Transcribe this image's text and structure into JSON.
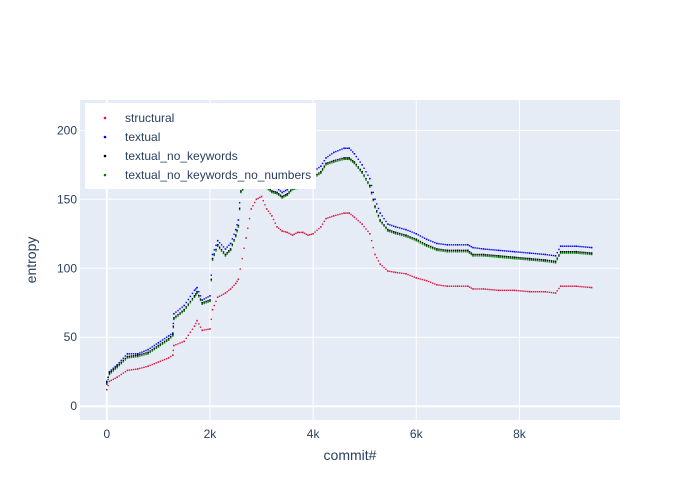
{
  "chart_data": {
    "type": "scatter",
    "title": "",
    "xlabel": "commit#",
    "ylabel": "entropy",
    "xlim": [
      -520,
      9950
    ],
    "ylim": [
      -10,
      222
    ],
    "x_ticks": [
      0,
      2000,
      4000,
      6000,
      8000
    ],
    "x_tick_labels": [
      "0",
      "2k",
      "4k",
      "6k",
      "8k"
    ],
    "y_ticks": [
      0,
      50,
      100,
      150,
      200
    ],
    "y_tick_labels": [
      "0",
      "50",
      "100",
      "150",
      "200"
    ],
    "grid": true,
    "legend_position": "top-left",
    "series": [
      {
        "name": "structural",
        "color": "#dc143c",
        "points": [
          [
            0,
            12
          ],
          [
            50,
            18
          ],
          [
            200,
            21
          ],
          [
            400,
            26
          ],
          [
            600,
            27
          ],
          [
            800,
            29
          ],
          [
            1000,
            32
          ],
          [
            1200,
            35
          ],
          [
            1280,
            37
          ],
          [
            1300,
            44
          ],
          [
            1500,
            47
          ],
          [
            1700,
            58
          ],
          [
            1750,
            62
          ],
          [
            1850,
            55
          ],
          [
            2000,
            56
          ],
          [
            2050,
            70
          ],
          [
            2150,
            79
          ],
          [
            2300,
            82
          ],
          [
            2400,
            85
          ],
          [
            2500,
            89
          ],
          [
            2550,
            92
          ],
          [
            2700,
            122
          ],
          [
            2800,
            143
          ],
          [
            2900,
            150
          ],
          [
            3000,
            152
          ],
          [
            3100,
            143
          ],
          [
            3200,
            138
          ],
          [
            3300,
            130
          ],
          [
            3400,
            127
          ],
          [
            3500,
            126
          ],
          [
            3600,
            124
          ],
          [
            3700,
            126
          ],
          [
            3800,
            126
          ],
          [
            3900,
            124
          ],
          [
            4000,
            125
          ],
          [
            4150,
            130
          ],
          [
            4250,
            136
          ],
          [
            4400,
            138
          ],
          [
            4600,
            140
          ],
          [
            4700,
            140
          ],
          [
            4800,
            137
          ],
          [
            4950,
            132
          ],
          [
            5100,
            125
          ],
          [
            5200,
            110
          ],
          [
            5300,
            103
          ],
          [
            5450,
            98
          ],
          [
            5600,
            97
          ],
          [
            5800,
            96
          ],
          [
            6000,
            93
          ],
          [
            6200,
            91
          ],
          [
            6400,
            88
          ],
          [
            6600,
            87
          ],
          [
            6800,
            87
          ],
          [
            7000,
            87
          ],
          [
            7100,
            85
          ],
          [
            7300,
            85
          ],
          [
            7600,
            84
          ],
          [
            7900,
            84
          ],
          [
            8200,
            83
          ],
          [
            8500,
            83
          ],
          [
            8700,
            82
          ],
          [
            8800,
            87
          ],
          [
            9100,
            87
          ],
          [
            9400,
            86
          ]
        ]
      },
      {
        "name": "textual",
        "color": "#0000ff",
        "points": [
          [
            0,
            17
          ],
          [
            50,
            25
          ],
          [
            200,
            30
          ],
          [
            400,
            38
          ],
          [
            600,
            38
          ],
          [
            800,
            41
          ],
          [
            1000,
            46
          ],
          [
            1200,
            51
          ],
          [
            1280,
            53
          ],
          [
            1300,
            67
          ],
          [
            1500,
            73
          ],
          [
            1700,
            84
          ],
          [
            1750,
            86
          ],
          [
            1850,
            77
          ],
          [
            2000,
            80
          ],
          [
            2050,
            110
          ],
          [
            2150,
            120
          ],
          [
            2300,
            114
          ],
          [
            2400,
            118
          ],
          [
            2500,
            128
          ],
          [
            2550,
            135
          ],
          [
            2600,
            160
          ],
          [
            2700,
            165
          ],
          [
            2800,
            172
          ],
          [
            2900,
            172
          ],
          [
            3000,
            167
          ],
          [
            3100,
            162
          ],
          [
            3200,
            159
          ],
          [
            3300,
            158
          ],
          [
            3400,
            155
          ],
          [
            3500,
            157
          ],
          [
            3600,
            162
          ],
          [
            3700,
            163
          ],
          [
            3800,
            163
          ],
          [
            3900,
            165
          ],
          [
            4000,
            170
          ],
          [
            4150,
            174
          ],
          [
            4250,
            180
          ],
          [
            4400,
            184
          ],
          [
            4600,
            187
          ],
          [
            4700,
            187
          ],
          [
            4800,
            183
          ],
          [
            4950,
            175
          ],
          [
            5100,
            165
          ],
          [
            5200,
            150
          ],
          [
            5300,
            140
          ],
          [
            5450,
            132
          ],
          [
            5600,
            130
          ],
          [
            5800,
            128
          ],
          [
            6000,
            125
          ],
          [
            6200,
            121
          ],
          [
            6400,
            118
          ],
          [
            6600,
            117
          ],
          [
            6800,
            117
          ],
          [
            7000,
            117
          ],
          [
            7100,
            115
          ],
          [
            7300,
            114
          ],
          [
            7600,
            113
          ],
          [
            7900,
            112
          ],
          [
            8200,
            111
          ],
          [
            8500,
            110
          ],
          [
            8700,
            109
          ],
          [
            8800,
            116
          ],
          [
            9100,
            116
          ],
          [
            9400,
            115
          ]
        ]
      },
      {
        "name": "textual_no_keywords",
        "color": "#000000",
        "points": [
          [
            0,
            18
          ],
          [
            50,
            24
          ],
          [
            200,
            29
          ],
          [
            400,
            36
          ],
          [
            600,
            37
          ],
          [
            800,
            39
          ],
          [
            1000,
            44
          ],
          [
            1200,
            49
          ],
          [
            1280,
            52
          ],
          [
            1300,
            64
          ],
          [
            1500,
            70
          ],
          [
            1700,
            80
          ],
          [
            1750,
            83
          ],
          [
            1850,
            75
          ],
          [
            2000,
            77
          ],
          [
            2050,
            107
          ],
          [
            2150,
            117
          ],
          [
            2300,
            110
          ],
          [
            2400,
            114
          ],
          [
            2500,
            124
          ],
          [
            2550,
            131
          ],
          [
            2600,
            156
          ],
          [
            2700,
            161
          ],
          [
            2800,
            168
          ],
          [
            2900,
            168
          ],
          [
            3000,
            163
          ],
          [
            3100,
            159
          ],
          [
            3200,
            156
          ],
          [
            3300,
            155
          ],
          [
            3400,
            152
          ],
          [
            3500,
            154
          ],
          [
            3600,
            158
          ],
          [
            3700,
            159
          ],
          [
            3800,
            159
          ],
          [
            3900,
            161
          ],
          [
            4000,
            166
          ],
          [
            4150,
            170
          ],
          [
            4250,
            176
          ],
          [
            4400,
            178
          ],
          [
            4600,
            180
          ],
          [
            4700,
            180
          ],
          [
            4800,
            177
          ],
          [
            4950,
            170
          ],
          [
            5100,
            160
          ],
          [
            5200,
            145
          ],
          [
            5300,
            135
          ],
          [
            5450,
            128
          ],
          [
            5600,
            126
          ],
          [
            5800,
            124
          ],
          [
            6000,
            121
          ],
          [
            6200,
            117
          ],
          [
            6400,
            114
          ],
          [
            6600,
            113
          ],
          [
            6800,
            113
          ],
          [
            7000,
            113
          ],
          [
            7100,
            110
          ],
          [
            7300,
            110
          ],
          [
            7600,
            109
          ],
          [
            7900,
            108
          ],
          [
            8200,
            107
          ],
          [
            8500,
            106
          ],
          [
            8700,
            105
          ],
          [
            8800,
            112
          ],
          [
            9100,
            112
          ],
          [
            9400,
            111
          ]
        ]
      },
      {
        "name": "textual_no_keywords_no_numbers",
        "color": "#008000",
        "points": [
          [
            0,
            16
          ],
          [
            50,
            23
          ],
          [
            200,
            28
          ],
          [
            400,
            35
          ],
          [
            600,
            36
          ],
          [
            800,
            38
          ],
          [
            1000,
            43
          ],
          [
            1200,
            48
          ],
          [
            1280,
            51
          ],
          [
            1300,
            63
          ],
          [
            1500,
            69
          ],
          [
            1700,
            79
          ],
          [
            1750,
            82
          ],
          [
            1850,
            74
          ],
          [
            2000,
            76
          ],
          [
            2050,
            106
          ],
          [
            2150,
            116
          ],
          [
            2300,
            109
          ],
          [
            2400,
            113
          ],
          [
            2500,
            123
          ],
          [
            2550,
            130
          ],
          [
            2600,
            155
          ],
          [
            2700,
            160
          ],
          [
            2800,
            167
          ],
          [
            2900,
            167
          ],
          [
            3000,
            162
          ],
          [
            3100,
            158
          ],
          [
            3200,
            155
          ],
          [
            3300,
            154
          ],
          [
            3400,
            151
          ],
          [
            3500,
            153
          ],
          [
            3600,
            157
          ],
          [
            3700,
            158
          ],
          [
            3800,
            158
          ],
          [
            3900,
            160
          ],
          [
            4000,
            165
          ],
          [
            4150,
            169
          ],
          [
            4250,
            175
          ],
          [
            4400,
            177
          ],
          [
            4600,
            179
          ],
          [
            4700,
            179
          ],
          [
            4800,
            176
          ],
          [
            4950,
            169
          ],
          [
            5100,
            159
          ],
          [
            5200,
            144
          ],
          [
            5300,
            134
          ],
          [
            5450,
            127
          ],
          [
            5600,
            125
          ],
          [
            5800,
            123
          ],
          [
            6000,
            120
          ],
          [
            6200,
            116
          ],
          [
            6400,
            113
          ],
          [
            6600,
            112
          ],
          [
            6800,
            112
          ],
          [
            7000,
            112
          ],
          [
            7100,
            109
          ],
          [
            7300,
            109
          ],
          [
            7600,
            108
          ],
          [
            7900,
            107
          ],
          [
            8200,
            106
          ],
          [
            8500,
            105
          ],
          [
            8700,
            104
          ],
          [
            8800,
            111
          ],
          [
            9100,
            111
          ],
          [
            9400,
            110
          ]
        ]
      }
    ]
  }
}
